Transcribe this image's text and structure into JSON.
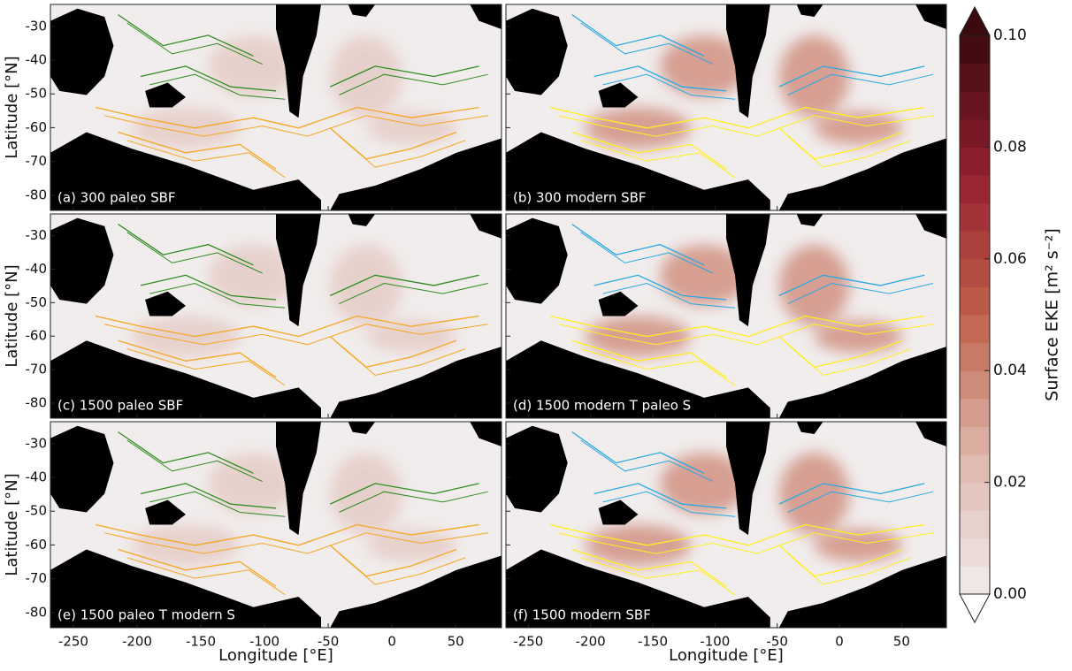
{
  "chart_data": [
    {
      "type": "map",
      "title": "(a) 300 paleo SBF",
      "ylabel": "Latitude [°N]",
      "xlim": [
        -268,
        86
      ],
      "ylim": [
        -84.5,
        -23.5
      ],
      "xticks": [
        -250,
        -200,
        -150,
        -100,
        -50,
        0,
        50
      ],
      "yticks": [
        -80,
        -70,
        -60,
        -50,
        -40,
        -30
      ],
      "contour_colors": [
        "#f5a623",
        "#2e8b20"
      ]
    },
    {
      "type": "map",
      "title": "(b) 300 modern SBF",
      "xlim": [
        -268,
        86
      ],
      "ylim": [
        -84.5,
        -23.5
      ],
      "xticks": [
        -250,
        -200,
        -150,
        -100,
        -50,
        0,
        50
      ],
      "yticks": [
        -80,
        -70,
        -60,
        -50,
        -40,
        -30
      ],
      "contour_colors": [
        "#ffee22",
        "#29a8e0"
      ]
    },
    {
      "type": "map",
      "title": "(c) 1500 paleo SBF",
      "ylabel": "Latitude [°N]",
      "xlim": [
        -268,
        86
      ],
      "ylim": [
        -84.5,
        -23.5
      ],
      "xticks": [
        -250,
        -200,
        -150,
        -100,
        -50,
        0,
        50
      ],
      "yticks": [
        -80,
        -70,
        -60,
        -50,
        -40,
        -30
      ],
      "contour_colors": [
        "#f5a623",
        "#2e8b20"
      ]
    },
    {
      "type": "map",
      "title": "(d) 1500 modern T paleo S",
      "xlim": [
        -268,
        86
      ],
      "ylim": [
        -84.5,
        -23.5
      ],
      "xticks": [
        -250,
        -200,
        -150,
        -100,
        -50,
        0,
        50
      ],
      "yticks": [
        -80,
        -70,
        -60,
        -50,
        -40,
        -30
      ],
      "contour_colors": [
        "#ffee22",
        "#29a8e0"
      ]
    },
    {
      "type": "map",
      "title": "(e) 1500 paleo T modern S",
      "ylabel": "Latitude [°N]",
      "xlabel": "Longitude [°E]",
      "xlim": [
        -268,
        86
      ],
      "ylim": [
        -84.5,
        -23.5
      ],
      "xticks": [
        -250,
        -200,
        -150,
        -100,
        -50,
        0,
        50
      ],
      "yticks": [
        -80,
        -70,
        -60,
        -50,
        -40,
        -30
      ],
      "contour_colors": [
        "#f5a623",
        "#2e8b20"
      ]
    },
    {
      "type": "map",
      "title": "(f) 1500 modern SBF",
      "xlabel": "Longitude [°E]",
      "xlim": [
        -268,
        86
      ],
      "ylim": [
        -84.5,
        -23.5
      ],
      "xticks": [
        -250,
        -200,
        -150,
        -100,
        -50,
        0,
        50
      ],
      "yticks": [
        -80,
        -70,
        -60,
        -50,
        -40,
        -30
      ],
      "contour_colors": [
        "#ffee22",
        "#29a8e0"
      ]
    },
    {
      "type": "colorbar",
      "label": "Surface EKE [m² s⁻²]",
      "lim": [
        0,
        0.1
      ],
      "ticks": [
        {
          "value": 0,
          "label": "0.00"
        },
        {
          "value": 0.02,
          "label": "0.02"
        },
        {
          "value": 0.04,
          "label": "0.04"
        },
        {
          "value": 0.06,
          "label": "0.06"
        },
        {
          "value": 0.08,
          "label": "0.08"
        },
        {
          "value": 0.1,
          "label": "0.10"
        }
      ],
      "colors": [
        "#f1eded",
        "#ddb5aa",
        "#c0604a",
        "#962030",
        "#3a0a0e"
      ]
    }
  ]
}
